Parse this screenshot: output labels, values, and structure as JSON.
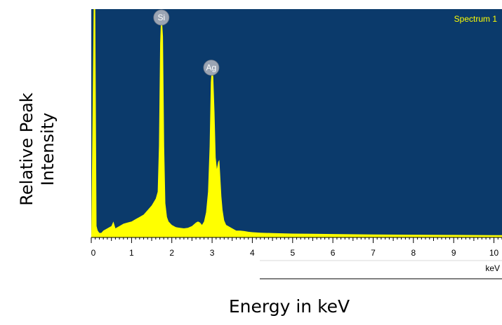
{
  "chart_data": {
    "type": "area",
    "title": "",
    "legend": "Spectrum 1",
    "legend_position": "top-right",
    "xlabel": "Energy in keV",
    "ylabel_lines": [
      "Relative Peak",
      "Intensity"
    ],
    "x_unit": "keV",
    "xlim": [
      0,
      10.2
    ],
    "ylim": [
      0,
      100
    ],
    "x_ticks": [
      0,
      1,
      2,
      3,
      4,
      5,
      6,
      7,
      8,
      9,
      10
    ],
    "x_tick_labels": [
      "0",
      "1",
      "2",
      "3",
      "4",
      "5",
      "6",
      "7",
      "8",
      "9",
      "10"
    ],
    "grid": false,
    "colors": {
      "plot_background": "#0b3a6b",
      "spectrum_fill": "#ffff00",
      "legend_text": "#ffff00",
      "peak_marker": "#9aa4b3"
    },
    "peak_labels": [
      {
        "label": "Si",
        "energy": 1.74
      },
      {
        "label": "Ag",
        "energy": 2.98
      }
    ],
    "series": [
      {
        "x": [
          0,
          0.06,
          0.1,
          0.13,
          0.16,
          0.2,
          0.25,
          0.3,
          0.4,
          0.5,
          0.55,
          0.6,
          0.7,
          0.8,
          0.9,
          1.0,
          1.1,
          1.2,
          1.3,
          1.4,
          1.5,
          1.6,
          1.65,
          1.68,
          1.71,
          1.74,
          1.78,
          1.81,
          1.84,
          1.88,
          1.92,
          2.0,
          2.1,
          2.2,
          2.3,
          2.4,
          2.5,
          2.6,
          2.65,
          2.7,
          2.75,
          2.8,
          2.85,
          2.9,
          2.94,
          2.97,
          3.0,
          3.03,
          3.06,
          3.09,
          3.12,
          3.15,
          3.18,
          3.2,
          3.23,
          3.26,
          3.3,
          3.35,
          3.4,
          3.5,
          3.6,
          3.7,
          3.8,
          3.9,
          4.0,
          4.2,
          4.5,
          5.0,
          5.5,
          6.0,
          7.0,
          8.0,
          9.0,
          10.0,
          10.2
        ],
        "y": [
          0,
          100,
          100,
          5,
          3,
          2,
          2,
          3,
          4,
          5,
          7,
          4,
          5,
          6,
          6.5,
          7,
          8,
          9,
          10,
          12,
          14,
          17,
          20,
          40,
          85,
          100,
          88,
          40,
          15,
          9,
          7,
          5.5,
          4.5,
          4.2,
          4,
          4.2,
          5,
          6.5,
          7,
          6.5,
          5.5,
          7,
          11,
          20,
          40,
          68,
          76,
          70,
          55,
          35,
          30,
          33,
          34,
          28,
          18,
          12,
          7.5,
          5.5,
          5,
          4,
          3,
          3,
          2.8,
          2.5,
          2.3,
          2.1,
          1.9,
          1.7,
          1.6,
          1.5,
          1.3,
          1.2,
          1.1,
          1.0,
          1.0
        ]
      }
    ]
  }
}
